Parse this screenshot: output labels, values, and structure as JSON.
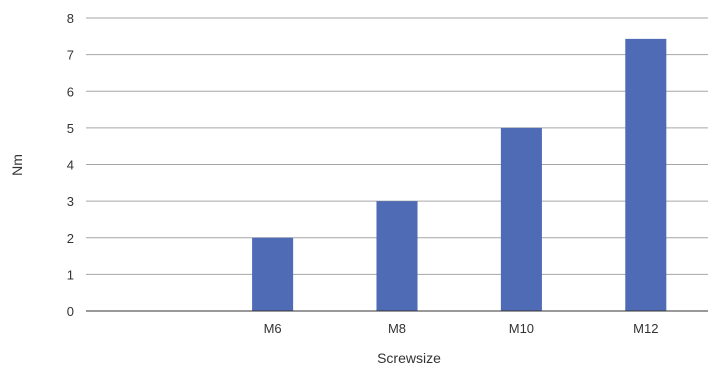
{
  "chart_data": {
    "type": "bar",
    "categories": [
      "",
      "M6",
      "M8",
      "M10",
      "M12"
    ],
    "values": [
      null,
      2,
      3,
      5,
      7.43
    ],
    "xlabel": "Screwsize",
    "ylabel": "Nm",
    "ylim": [
      0,
      8
    ],
    "yticks": [
      0,
      1,
      2,
      3,
      4,
      5,
      6,
      7,
      8
    ],
    "grid": true,
    "bar_color": "#4f6bb5",
    "grid_color": "#a6a6a6"
  }
}
